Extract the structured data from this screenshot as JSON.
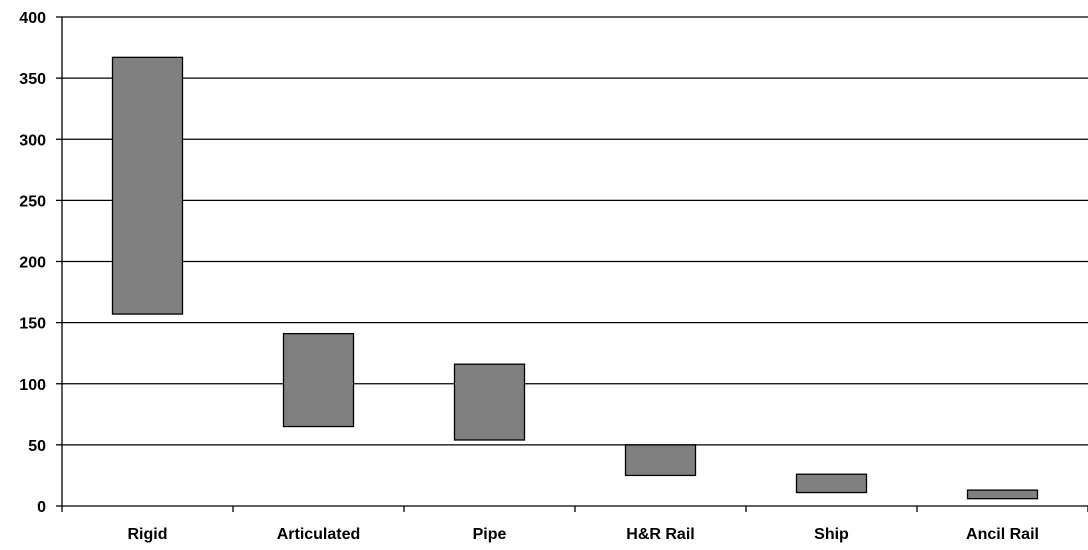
{
  "chart_data": {
    "type": "bar",
    "subtype": "floating",
    "categories": [
      "Rigid",
      "Articulated",
      "Pipe",
      "H&R Rail",
      "Ship",
      "Ancil Rail"
    ],
    "series": [
      {
        "low": [
          157,
          65,
          54,
          25,
          11,
          6
        ],
        "high": [
          367,
          141,
          116,
          50,
          26,
          13
        ]
      }
    ],
    "ylim": [
      0,
      400
    ],
    "yticks": [
      0,
      50,
      100,
      150,
      200,
      250,
      300,
      350,
      400
    ],
    "grid": true,
    "legend": "none",
    "colors": {
      "bar": "#808080",
      "bar_stroke": "#000000",
      "grid": "#000000"
    }
  }
}
